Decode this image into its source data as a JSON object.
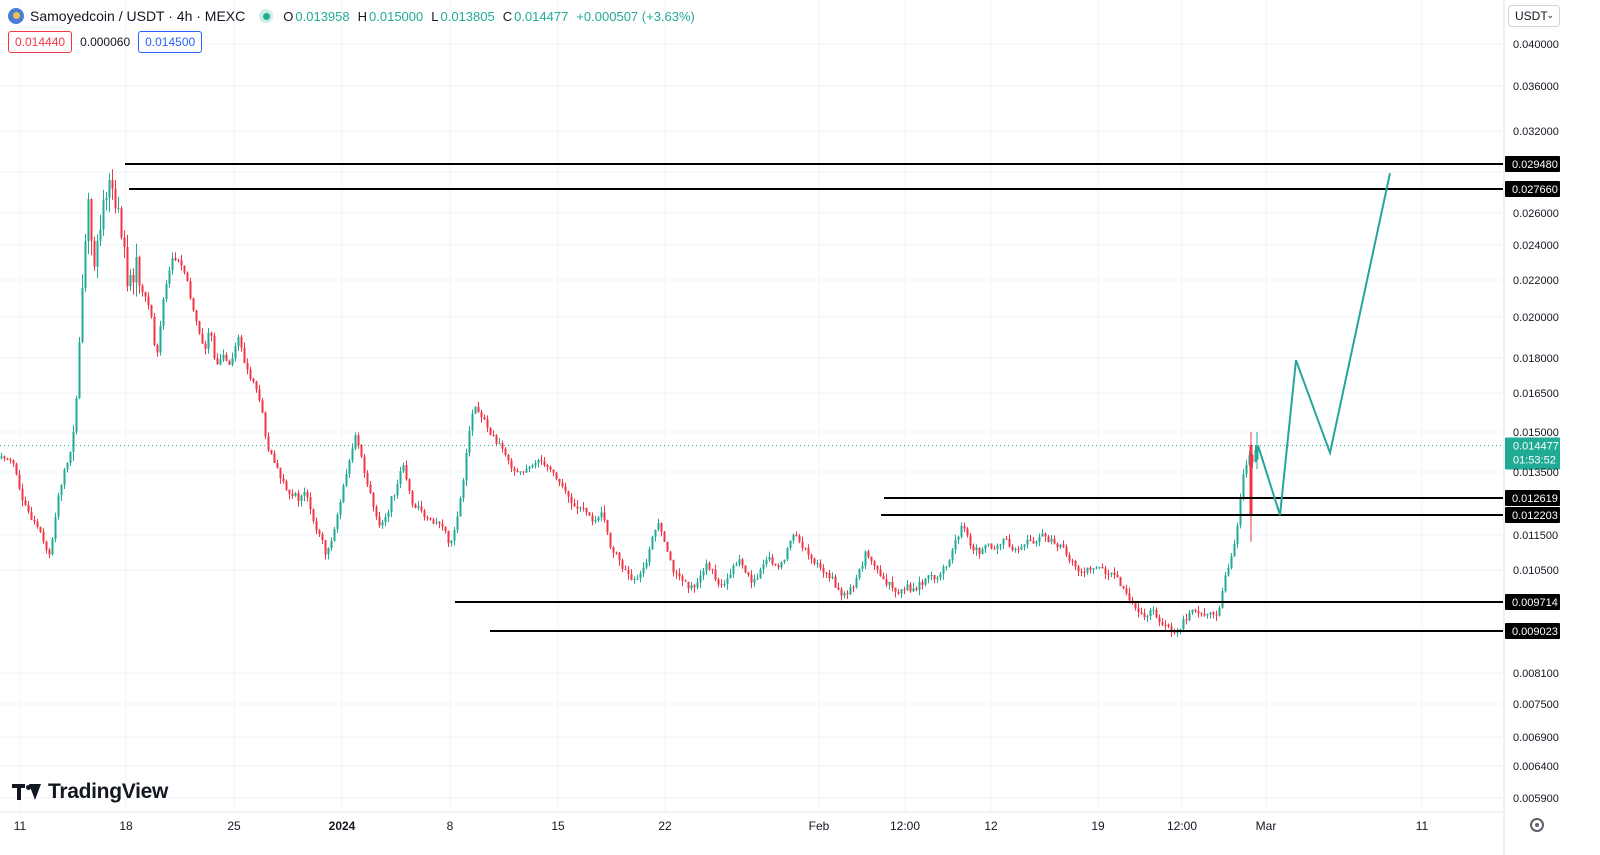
{
  "header": {
    "symbol": "Samoyedcoin / USDT · 4h · MEXC",
    "open_label": "O",
    "open": "0.013958",
    "high_label": "H",
    "high": "0.015000",
    "low_label": "L",
    "low": "0.013805",
    "close_label": "C",
    "close": "0.014477",
    "change": "+0.000507 (+3.63%)"
  },
  "trade": {
    "sell_price": "0.014440",
    "spread": "0.000060",
    "buy_price": "0.014500"
  },
  "currency_selector": "USDT",
  "brand": "TradingView",
  "colors": {
    "up": "#22ab94",
    "down": "#f23645",
    "line": "#131722",
    "last_price": "#22ab94"
  },
  "chart_data": {
    "type": "candlestick",
    "timeframe": "4h",
    "y_ticks": [
      "0.040000",
      "0.036000",
      "0.032000",
      "0.029480",
      "0.027660",
      "0.026000",
      "0.024000",
      "0.022000",
      "0.020000",
      "0.018000",
      "0.016500",
      "0.015000",
      "0.014477",
      "0.013500",
      "0.012619",
      "0.012203",
      "0.011500",
      "0.010500",
      "0.009714",
      "0.009023",
      "0.008100",
      "0.007500",
      "0.006900",
      "0.006400",
      "0.005900"
    ],
    "x_ticks": [
      "11",
      "18",
      "25",
      "2024",
      "8",
      "15",
      "22",
      "Feb",
      "12:00",
      "12",
      "19",
      "12:00",
      "Mar",
      "11"
    ],
    "last_price": "0.014477",
    "countdown": "01:53:52",
    "ylim": [
      0.0059,
      0.04
    ],
    "price_path": [
      [
        0,
        0.014
      ],
      [
        14,
        0.014
      ],
      [
        24,
        0.0125
      ],
      [
        40,
        0.0118
      ],
      [
        52,
        0.0108
      ],
      [
        58,
        0.0125
      ],
      [
        66,
        0.0135
      ],
      [
        74,
        0.0145
      ],
      [
        79,
        0.0165
      ],
      [
        84,
        0.022
      ],
      [
        90,
        0.027
      ],
      [
        96,
        0.0225
      ],
      [
        102,
        0.025
      ],
      [
        110,
        0.0285
      ],
      [
        116,
        0.0272
      ],
      [
        124,
        0.0245
      ],
      [
        130,
        0.0215
      ],
      [
        138,
        0.0228
      ],
      [
        146,
        0.021
      ],
      [
        152,
        0.0205
      ],
      [
        158,
        0.0178
      ],
      [
        166,
        0.0215
      ],
      [
        174,
        0.0232
      ],
      [
        182,
        0.023
      ],
      [
        188,
        0.022
      ],
      [
        194,
        0.0205
      ],
      [
        200,
        0.0195
      ],
      [
        206,
        0.0182
      ],
      [
        212,
        0.0195
      ],
      [
        218,
        0.0175
      ],
      [
        224,
        0.0182
      ],
      [
        232,
        0.0178
      ],
      [
        240,
        0.019
      ],
      [
        246,
        0.0178
      ],
      [
        254,
        0.017
      ],
      [
        262,
        0.0162
      ],
      [
        268,
        0.0145
      ],
      [
        276,
        0.0138
      ],
      [
        284,
        0.0132
      ],
      [
        292,
        0.0128
      ],
      [
        300,
        0.0126
      ],
      [
        308,
        0.0128
      ],
      [
        316,
        0.0118
      ],
      [
        322,
        0.0115
      ],
      [
        328,
        0.0108
      ],
      [
        336,
        0.0118
      ],
      [
        344,
        0.0128
      ],
      [
        352,
        0.014
      ],
      [
        358,
        0.015
      ],
      [
        364,
        0.0138
      ],
      [
        372,
        0.0128
      ],
      [
        380,
        0.0118
      ],
      [
        388,
        0.0122
      ],
      [
        396,
        0.0128
      ],
      [
        404,
        0.0138
      ],
      [
        412,
        0.0126
      ],
      [
        420,
        0.0124
      ],
      [
        428,
        0.012
      ],
      [
        436,
        0.012
      ],
      [
        444,
        0.0118
      ],
      [
        452,
        0.0112
      ],
      [
        458,
        0.012
      ],
      [
        464,
        0.013
      ],
      [
        470,
        0.015
      ],
      [
        476,
        0.016
      ],
      [
        484,
        0.0155
      ],
      [
        492,
        0.015
      ],
      [
        500,
        0.0145
      ],
      [
        508,
        0.014
      ],
      [
        516,
        0.0136
      ],
      [
        524,
        0.0135
      ],
      [
        532,
        0.0136
      ],
      [
        540,
        0.014
      ],
      [
        548,
        0.0138
      ],
      [
        556,
        0.0134
      ],
      [
        564,
        0.013
      ],
      [
        572,
        0.0125
      ],
      [
        580,
        0.0124
      ],
      [
        588,
        0.0122
      ],
      [
        596,
        0.012
      ],
      [
        604,
        0.0122
      ],
      [
        612,
        0.0112
      ],
      [
        620,
        0.0108
      ],
      [
        628,
        0.0104
      ],
      [
        636,
        0.0102
      ],
      [
        644,
        0.0104
      ],
      [
        652,
        0.0112
      ],
      [
        660,
        0.012
      ],
      [
        668,
        0.0112
      ],
      [
        676,
        0.0104
      ],
      [
        684,
        0.0102
      ],
      [
        692,
        0.01
      ],
      [
        700,
        0.0103
      ],
      [
        708,
        0.0106
      ],
      [
        716,
        0.0104
      ],
      [
        724,
        0.01
      ],
      [
        732,
        0.0104
      ],
      [
        740,
        0.0108
      ],
      [
        748,
        0.0104
      ],
      [
        756,
        0.0102
      ],
      [
        764,
        0.0106
      ],
      [
        772,
        0.0108
      ],
      [
        780,
        0.0105
      ],
      [
        788,
        0.011
      ],
      [
        796,
        0.0116
      ],
      [
        804,
        0.0112
      ],
      [
        812,
        0.0108
      ],
      [
        820,
        0.0106
      ],
      [
        828,
        0.0104
      ],
      [
        836,
        0.0102
      ],
      [
        844,
        0.0098
      ],
      [
        852,
        0.01
      ],
      [
        860,
        0.0104
      ],
      [
        868,
        0.011
      ],
      [
        876,
        0.0106
      ],
      [
        884,
        0.0102
      ],
      [
        892,
        0.0101
      ],
      [
        900,
        0.01
      ],
      [
        908,
        0.0101
      ],
      [
        916,
        0.01
      ],
      [
        924,
        0.0102
      ],
      [
        932,
        0.0104
      ],
      [
        940,
        0.0103
      ],
      [
        948,
        0.0106
      ],
      [
        956,
        0.0112
      ],
      [
        964,
        0.0118
      ],
      [
        972,
        0.0112
      ],
      [
        980,
        0.011
      ],
      [
        988,
        0.0112
      ],
      [
        996,
        0.011
      ],
      [
        1004,
        0.0114
      ],
      [
        1012,
        0.0112
      ],
      [
        1020,
        0.011
      ],
      [
        1028,
        0.0114
      ],
      [
        1036,
        0.0112
      ],
      [
        1044,
        0.0116
      ],
      [
        1052,
        0.0113
      ],
      [
        1060,
        0.0112
      ],
      [
        1068,
        0.011
      ],
      [
        1076,
        0.0106
      ],
      [
        1084,
        0.0104
      ],
      [
        1092,
        0.0106
      ],
      [
        1100,
        0.0106
      ],
      [
        1108,
        0.0104
      ],
      [
        1116,
        0.0103
      ],
      [
        1124,
        0.0101
      ],
      [
        1132,
        0.0098
      ],
      [
        1140,
        0.0094
      ],
      [
        1148,
        0.0094
      ],
      [
        1156,
        0.0095
      ],
      [
        1164,
        0.0092
      ],
      [
        1172,
        0.0091
      ],
      [
        1178,
        0.009
      ],
      [
        1186,
        0.0093
      ],
      [
        1194,
        0.0095
      ],
      [
        1202,
        0.0094
      ],
      [
        1210,
        0.0095
      ],
      [
        1216,
        0.0093
      ],
      [
        1222,
        0.0097
      ],
      [
        1228,
        0.0104
      ],
      [
        1234,
        0.011
      ],
      [
        1240,
        0.012
      ],
      [
        1244,
        0.0134
      ],
      [
        1250,
        0.014
      ],
      [
        1256,
        0.01395
      ],
      [
        1258,
        0.014477
      ]
    ],
    "horizontal_levels": [
      {
        "price": "0.029480",
        "x_start": "Dec 17 12:00"
      },
      {
        "price": "0.027660",
        "x_start": "Dec 18"
      },
      {
        "price": "0.012619",
        "x_start": "Feb 4 12:00"
      },
      {
        "price": "0.012203",
        "x_start": "Feb 4 12:00"
      },
      {
        "price": "0.009714",
        "x_start": "Jan 7 12:00"
      },
      {
        "price": "0.009023",
        "x_start": "Jan 8"
      }
    ],
    "projection_path": [
      [
        1258,
        0.014477
      ],
      [
        1280,
        0.0122
      ],
      [
        1296,
        0.0179
      ],
      [
        1330,
        0.0142
      ],
      [
        1390,
        0.0288
      ]
    ],
    "projection_color": "#26a69a"
  }
}
